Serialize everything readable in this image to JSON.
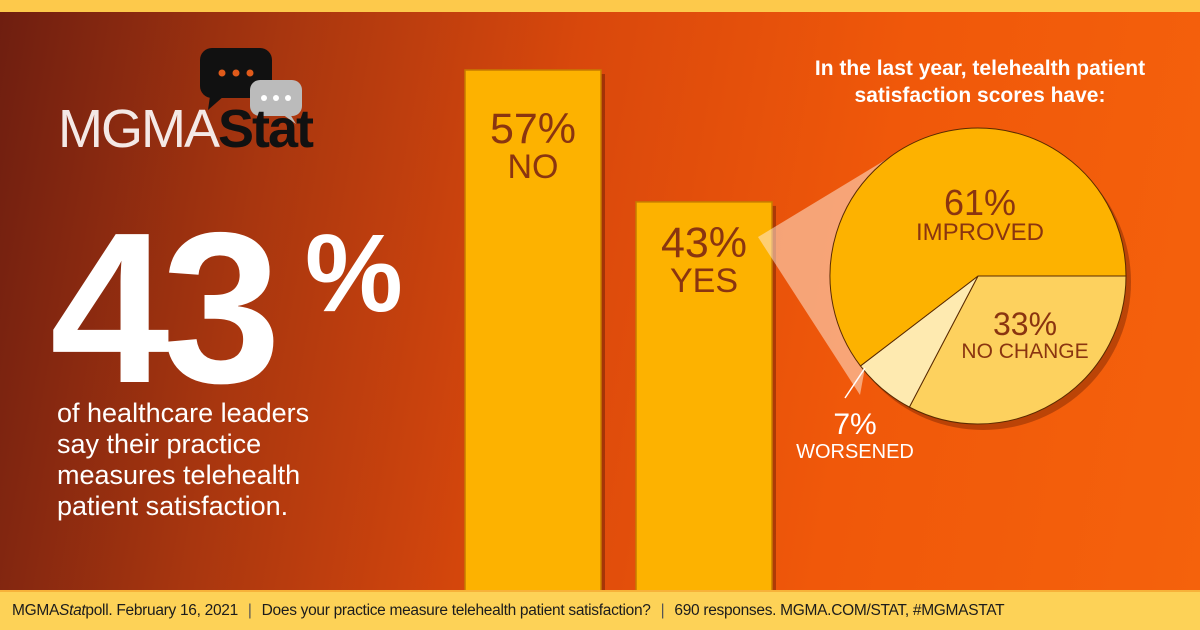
{
  "logo": {
    "text_light": "MGMA",
    "text_bold": "Stat"
  },
  "headline": {
    "value": "43",
    "symbol": "%",
    "description": [
      "of healthcare leaders",
      "say their practice",
      "measures telehealth",
      "patient satisfaction."
    ]
  },
  "chart_data": [
    {
      "type": "bar",
      "categories": [
        "NO",
        "YES"
      ],
      "values": [
        57,
        43
      ],
      "labels": [
        "57%",
        "43%"
      ],
      "color": "#fdb200"
    },
    {
      "type": "pie",
      "title": "In the last year, telehealth patient satisfaction scores have:",
      "categories": [
        "IMPROVED",
        "NO CHANGE",
        "WORSENED"
      ],
      "values": [
        61,
        33,
        7
      ],
      "labels": [
        "61%",
        "33%",
        "7%"
      ],
      "colors": [
        "#fdb200",
        "#fdd15e",
        "#feeab0"
      ]
    }
  ],
  "footer": {
    "source_a": "MGMA ",
    "source_b": "Stat",
    "source_c": " poll. February 16, 2021",
    "separator": "|",
    "question": "Does your practice measure telehealth patient satisfaction?",
    "responses": "690 responses. MGMA.COM/STAT, #MGMASTAT"
  }
}
